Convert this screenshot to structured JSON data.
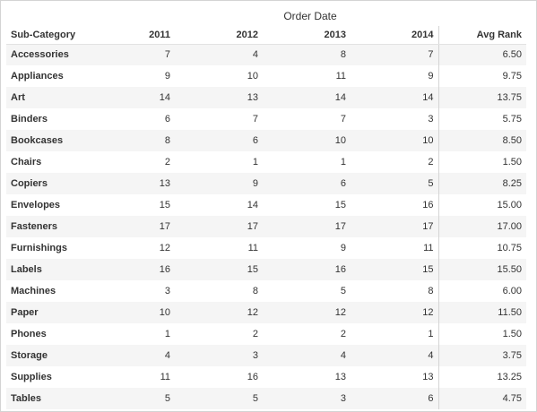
{
  "table": {
    "group_header": "Order Date",
    "columns": {
      "subcategory": "Sub-Category",
      "y2011": "2011",
      "y2012": "2012",
      "y2013": "2013",
      "y2014": "2014",
      "avg_rank": "Avg Rank"
    },
    "rows": [
      {
        "name": "Accessories",
        "y2011": "7",
        "y2012": "4",
        "y2013": "8",
        "y2014": "7",
        "avg": "6.50"
      },
      {
        "name": "Appliances",
        "y2011": "9",
        "y2012": "10",
        "y2013": "11",
        "y2014": "9",
        "avg": "9.75"
      },
      {
        "name": "Art",
        "y2011": "14",
        "y2012": "13",
        "y2013": "14",
        "y2014": "14",
        "avg": "13.75"
      },
      {
        "name": "Binders",
        "y2011": "6",
        "y2012": "7",
        "y2013": "7",
        "y2014": "3",
        "avg": "5.75"
      },
      {
        "name": "Bookcases",
        "y2011": "8",
        "y2012": "6",
        "y2013": "10",
        "y2014": "10",
        "avg": "8.50"
      },
      {
        "name": "Chairs",
        "y2011": "2",
        "y2012": "1",
        "y2013": "1",
        "y2014": "2",
        "avg": "1.50"
      },
      {
        "name": "Copiers",
        "y2011": "13",
        "y2012": "9",
        "y2013": "6",
        "y2014": "5",
        "avg": "8.25"
      },
      {
        "name": "Envelopes",
        "y2011": "15",
        "y2012": "14",
        "y2013": "15",
        "y2014": "16",
        "avg": "15.00"
      },
      {
        "name": "Fasteners",
        "y2011": "17",
        "y2012": "17",
        "y2013": "17",
        "y2014": "17",
        "avg": "17.00"
      },
      {
        "name": "Furnishings",
        "y2011": "12",
        "y2012": "11",
        "y2013": "9",
        "y2014": "11",
        "avg": "10.75"
      },
      {
        "name": "Labels",
        "y2011": "16",
        "y2012": "15",
        "y2013": "16",
        "y2014": "15",
        "avg": "15.50"
      },
      {
        "name": "Machines",
        "y2011": "3",
        "y2012": "8",
        "y2013": "5",
        "y2014": "8",
        "avg": "6.00"
      },
      {
        "name": "Paper",
        "y2011": "10",
        "y2012": "12",
        "y2013": "12",
        "y2014": "12",
        "avg": "11.50"
      },
      {
        "name": "Phones",
        "y2011": "1",
        "y2012": "2",
        "y2013": "2",
        "y2014": "1",
        "avg": "1.50"
      },
      {
        "name": "Storage",
        "y2011": "4",
        "y2012": "3",
        "y2013": "4",
        "y2014": "4",
        "avg": "3.75"
      },
      {
        "name": "Supplies",
        "y2011": "11",
        "y2012": "16",
        "y2013": "13",
        "y2014": "13",
        "avg": "13.25"
      },
      {
        "name": "Tables",
        "y2011": "5",
        "y2012": "5",
        "y2013": "3",
        "y2014": "6",
        "avg": "4.75"
      }
    ]
  }
}
